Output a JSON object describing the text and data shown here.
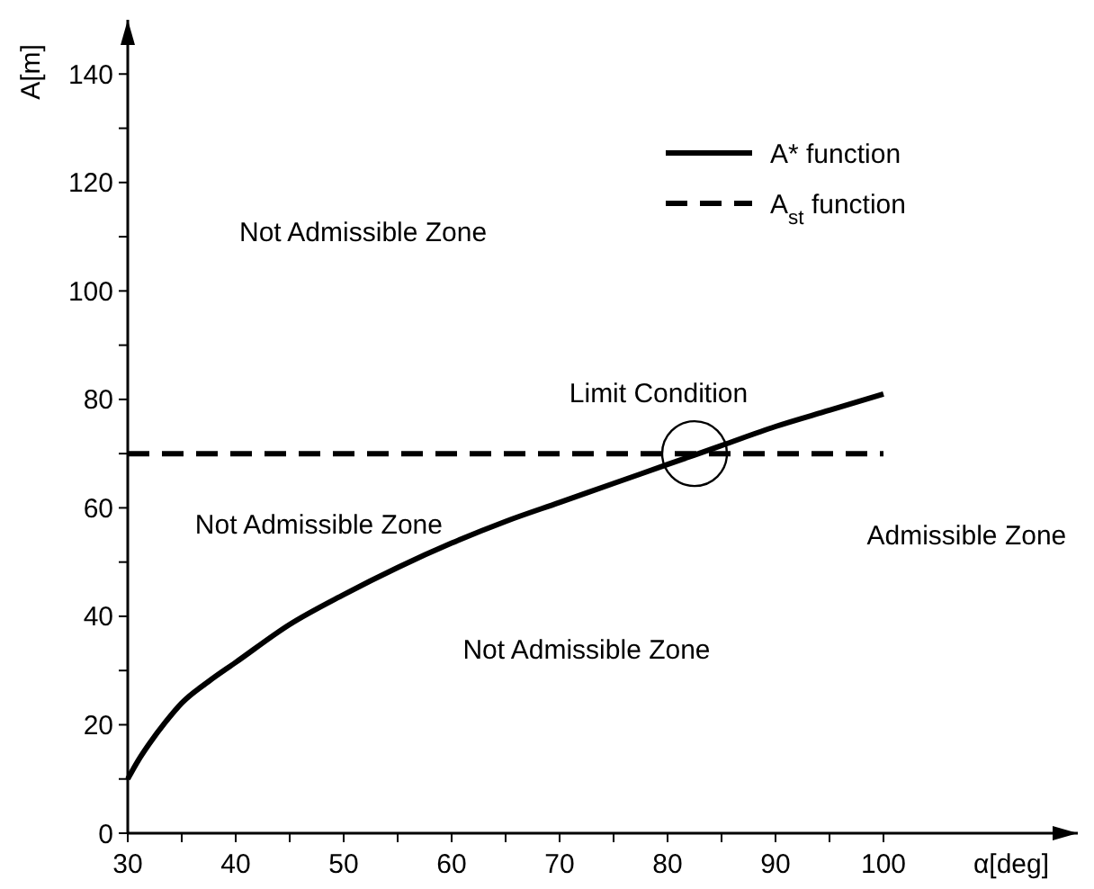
{
  "chart_data": {
    "type": "line",
    "xlabel": "α[deg]",
    "ylabel": "A[m]",
    "xlim": [
      30,
      118
    ],
    "ylim": [
      0,
      150
    ],
    "xticks": [
      30,
      {
        "value": 35,
        "label": null
      },
      40,
      {
        "value": 45,
        "label": null
      },
      50,
      {
        "value": 55,
        "label": null
      },
      60,
      {
        "value": 65,
        "label": null
      },
      70,
      {
        "value": 75,
        "label": null
      },
      80,
      {
        "value": 85,
        "label": null
      },
      90,
      {
        "value": 95,
        "label": null
      },
      100
    ],
    "yticks": [
      0,
      {
        "value": 10,
        "label": null
      },
      20,
      {
        "value": 30,
        "label": null
      },
      40,
      {
        "value": 50,
        "label": null
      },
      60,
      {
        "value": 70,
        "label": null
      },
      80,
      {
        "value": 90,
        "label": null
      },
      100,
      {
        "value": 110,
        "label": null
      },
      120,
      {
        "value": 130,
        "label": null
      },
      140
    ],
    "legend": "top right",
    "series": [
      {
        "name": "A* function",
        "color": "#000000",
        "line_style": "solid",
        "x": [
          30,
          31,
          32,
          33.5,
          35,
          37.5,
          40,
          45,
          50,
          55,
          60,
          65,
          70,
          75,
          80,
          85,
          90,
          95,
          100
        ],
        "values": [
          10,
          13.5,
          16.5,
          20.5,
          24,
          28,
          31.5,
          38.5,
          44,
          49,
          53.5,
          57.5,
          61,
          64.5,
          68,
          71.5,
          75,
          78,
          81
        ]
      },
      {
        "name": "A$_{st}$ function",
        "color": "#000000",
        "line_style": "dashed",
        "x": [
          30,
          100
        ],
        "values": [
          70,
          70
        ]
      }
    ],
    "annotations": [
      "Not Admissible Zone",
      "Not Admissible Zone",
      "Not Admissible Zone",
      "Admissible Zone",
      {
        "text": "Limit Condition",
        "x": 82.5,
        "y": 70
      }
    ]
  }
}
